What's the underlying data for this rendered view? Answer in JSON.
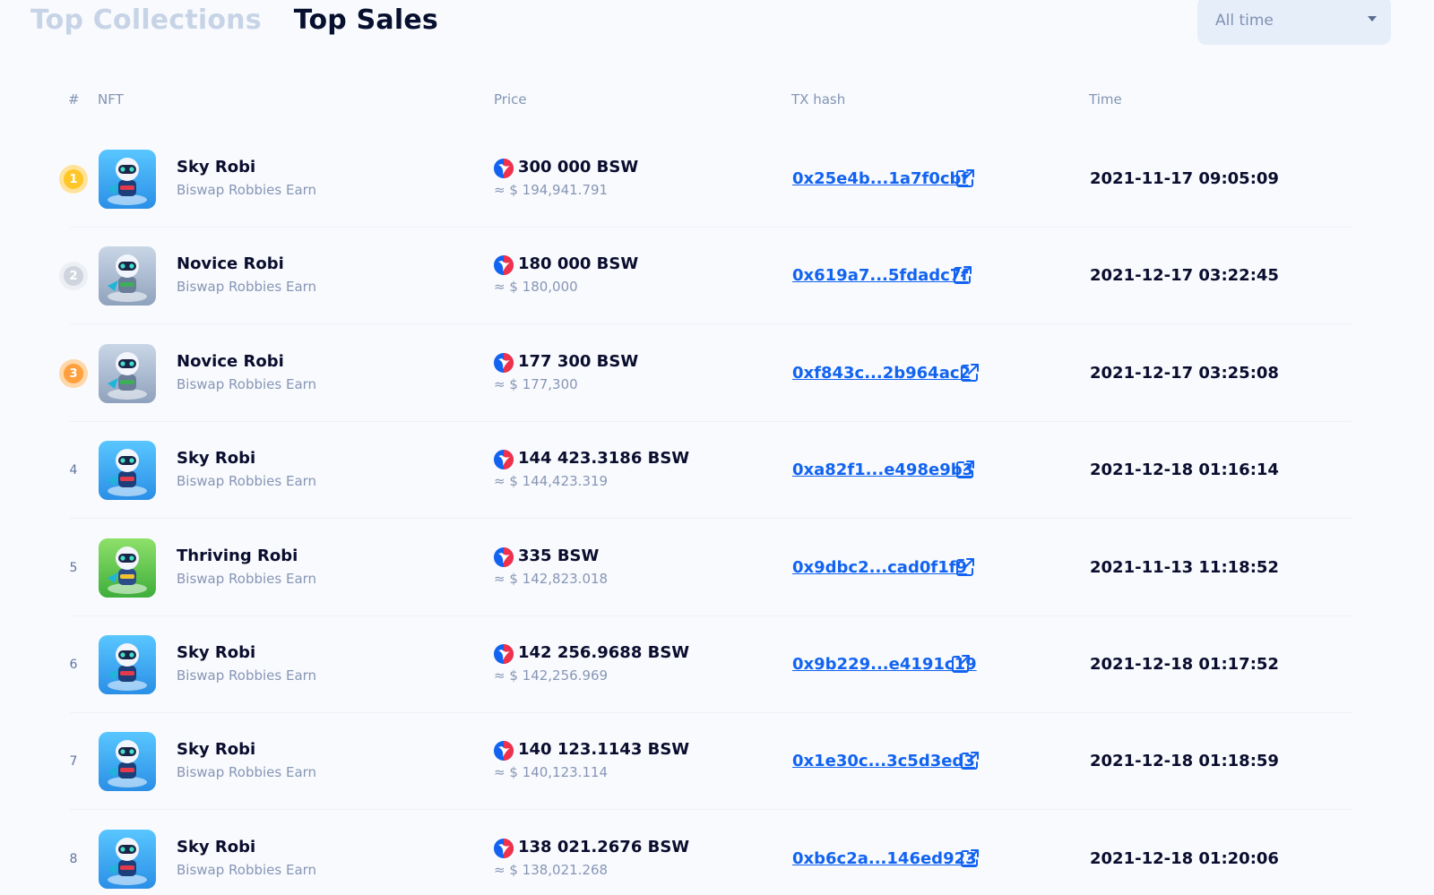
{
  "tabs": {
    "top_collections": "Top Collections",
    "top_sales": "Top Sales"
  },
  "filter": {
    "selected": "All time"
  },
  "table": {
    "headers": {
      "rank": "#",
      "nft": "NFT",
      "price": "Price",
      "tx_hash": "TX hash",
      "time": "Time"
    },
    "rows": [
      {
        "rank": "1",
        "medal": "gold",
        "name": "Sky Robi",
        "collection": "Biswap Robbies Earn",
        "price": "300 000 BSW",
        "usd": "≈ $ 194,941.791",
        "tx": "0x25e4b...1a7f0cbf",
        "time": "2021-11-17 09:05:09",
        "thumb": "sky"
      },
      {
        "rank": "2",
        "medal": "silver",
        "name": "Novice Robi",
        "collection": "Biswap Robbies Earn",
        "price": "180 000 BSW",
        "usd": "≈ $ 180,000",
        "tx": "0x619a7...5fdadc7f",
        "time": "2021-12-17 03:22:45",
        "thumb": "novice"
      },
      {
        "rank": "3",
        "medal": "bronze",
        "name": "Novice Robi",
        "collection": "Biswap Robbies Earn",
        "price": "177 300 BSW",
        "usd": "≈ $ 177,300",
        "tx": "0xf843c...2b964ac2",
        "time": "2021-12-17 03:25:08",
        "thumb": "novice"
      },
      {
        "rank": "4",
        "medal": "",
        "name": "Sky Robi",
        "collection": "Biswap Robbies Earn",
        "price": "144 423.3186 BSW",
        "usd": "≈ $ 144,423.319",
        "tx": "0xa82f1...e498e9b3",
        "time": "2021-12-18 01:16:14",
        "thumb": "sky"
      },
      {
        "rank": "5",
        "medal": "",
        "name": "Thriving Robi",
        "collection": "Biswap Robbies Earn",
        "price": "335 BSW",
        "usd": "≈ $ 142,823.018",
        "tx": "0x9dbc2...cad0f1f9",
        "time": "2021-11-13 11:18:52",
        "thumb": "thriving"
      },
      {
        "rank": "6",
        "medal": "",
        "name": "Sky Robi",
        "collection": "Biswap Robbies Earn",
        "price": "142 256.9688 BSW",
        "usd": "≈ $ 142,256.969",
        "tx": "0x9b229...e4191c19",
        "time": "2021-12-18 01:17:52",
        "thumb": "sky"
      },
      {
        "rank": "7",
        "medal": "",
        "name": "Sky Robi",
        "collection": "Biswap Robbies Earn",
        "price": "140 123.1143 BSW",
        "usd": "≈ $ 140,123.114",
        "tx": "0x1e30c...3c5d3ed3",
        "time": "2021-12-18 01:18:59",
        "thumb": "sky"
      },
      {
        "rank": "8",
        "medal": "",
        "name": "Sky Robi",
        "collection": "Biswap Robbies Earn",
        "price": "138 021.2676 BSW",
        "usd": "≈ $ 138,021.268",
        "tx": "0xb6c2a...146ed923",
        "time": "2021-12-18 01:20:06",
        "thumb": "sky"
      }
    ]
  },
  "colors": {
    "link": "#1263f1",
    "text": "#0a0d2e",
    "muted": "#8796b6",
    "tab_inactive": "#c7d3e6",
    "gold": "#ffc627",
    "silver": "#cfd5de",
    "bronze": "#ff9f3d"
  }
}
